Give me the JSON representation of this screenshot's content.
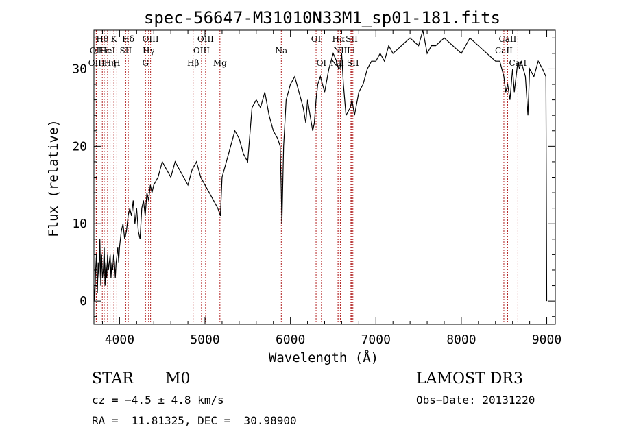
{
  "chart_data": {
    "type": "line",
    "title": "spec-56647-M31010N33M1_sp01-181.fits",
    "xlabel": "Wavelength (Å)",
    "ylabel": "Flux (relative)",
    "xlim": [
      3700,
      9100
    ],
    "ylim": [
      -3,
      35
    ],
    "x_ticks": [
      4000,
      5000,
      6000,
      7000,
      8000,
      9000
    ],
    "y_ticks": [
      0,
      10,
      20,
      30
    ],
    "grid": false,
    "series": [
      {
        "name": "flux",
        "x": [
          3700,
          3710,
          3720,
          3730,
          3740,
          3750,
          3760,
          3770,
          3780,
          3790,
          3800,
          3810,
          3820,
          3830,
          3840,
          3850,
          3860,
          3870,
          3880,
          3890,
          3900,
          3910,
          3920,
          3930,
          3940,
          3950,
          3960,
          3970,
          3980,
          3990,
          4000,
          4020,
          4040,
          4060,
          4080,
          4100,
          4120,
          4140,
          4160,
          4180,
          4200,
          4220,
          4240,
          4260,
          4280,
          4300,
          4320,
          4340,
          4360,
          4380,
          4400,
          4450,
          4500,
          4550,
          4600,
          4650,
          4700,
          4750,
          4800,
          4850,
          4900,
          4950,
          5000,
          5050,
          5100,
          5150,
          5180,
          5200,
          5250,
          5300,
          5350,
          5400,
          5450,
          5500,
          5550,
          5600,
          5650,
          5700,
          5750,
          5800,
          5850,
          5880,
          5893,
          5900,
          5920,
          5950,
          6000,
          6050,
          6100,
          6150,
          6180,
          6200,
          6230,
          6260,
          6280,
          6300,
          6320,
          6350,
          6400,
          6450,
          6500,
          6540,
          6563,
          6580,
          6600,
          6620,
          6650,
          6700,
          6720,
          6750,
          6800,
          6850,
          6900,
          6950,
          7000,
          7050,
          7100,
          7150,
          7200,
          7300,
          7400,
          7500,
          7550,
          7600,
          7650,
          7700,
          7800,
          7900,
          8000,
          8100,
          8200,
          8300,
          8400,
          8450,
          8498,
          8520,
          8542,
          8570,
          8600,
          8620,
          8662,
          8680,
          8700,
          8750,
          8780,
          8800,
          8850,
          8900,
          8950,
          8990,
          9000
        ],
        "y": [
          2,
          0,
          4,
          6,
          1,
          5,
          3,
          8,
          2,
          6,
          3,
          4,
          7,
          2,
          5,
          3,
          6,
          4,
          5,
          6,
          3,
          5,
          4,
          6,
          5,
          3,
          5,
          6,
          7,
          5,
          7,
          9,
          10,
          8,
          9,
          11,
          12,
          11,
          13,
          10,
          12,
          9,
          8,
          12,
          13,
          11,
          14,
          13,
          15,
          14,
          15,
          16,
          18,
          17,
          16,
          18,
          17,
          16,
          15,
          17,
          18,
          16,
          15,
          14,
          13,
          12,
          11,
          16,
          18,
          20,
          22,
          21,
          19,
          18,
          25,
          26,
          25,
          27,
          24,
          22,
          21,
          20,
          14,
          10,
          20,
          26,
          28,
          29,
          27,
          25,
          23,
          26,
          24,
          22,
          23,
          26,
          28,
          29,
          27,
          30,
          32,
          31,
          30,
          30,
          32,
          28,
          24,
          25,
          26,
          24,
          27,
          28,
          30,
          31,
          31,
          32,
          31,
          33,
          32,
          33,
          34,
          33,
          35,
          32,
          33,
          33,
          34,
          33,
          32,
          34,
          33,
          32,
          31,
          31,
          29,
          27,
          28,
          26,
          30,
          27,
          31,
          30,
          31,
          29,
          24,
          30,
          29,
          31,
          30,
          29,
          0
        ]
      }
    ],
    "line_markers": [
      {
        "label": "Hθ",
        "x": 3798,
        "row": 1
      },
      {
        "label": "OII",
        "x": 3727,
        "row": 2
      },
      {
        "label": "OIII",
        "x": 3730,
        "row": 3
      },
      {
        "label": "Hε",
        "x": 3820,
        "row": 2
      },
      {
        "label": "HeI",
        "x": 3860,
        "row": 2
      },
      {
        "label": "K",
        "x": 3934,
        "row": 1
      },
      {
        "label": "Hη",
        "x": 3889,
        "row": 3
      },
      {
        "label": "H",
        "x": 3968,
        "row": 3
      },
      {
        "label": "SII",
        "x": 4072,
        "row": 2
      },
      {
        "label": "Hδ",
        "x": 4102,
        "row": 1
      },
      {
        "label": "OIII",
        "x": 4363,
        "row": 1
      },
      {
        "label": "Hγ",
        "x": 4340,
        "row": 2
      },
      {
        "label": "G",
        "x": 4304,
        "row": 3
      },
      {
        "label": "Hβ",
        "x": 4861,
        "row": 3
      },
      {
        "label": "OIII",
        "x": 5007,
        "row": 1
      },
      {
        "label": "OIII",
        "x": 4959,
        "row": 2
      },
      {
        "label": "Mg",
        "x": 5175,
        "row": 3
      },
      {
        "label": "Na",
        "x": 5893,
        "row": 2
      },
      {
        "label": "OI",
        "x": 6300,
        "row": 1
      },
      {
        "label": "OI",
        "x": 6363,
        "row": 3
      },
      {
        "label": "Hα",
        "x": 6563,
        "row": 1
      },
      {
        "label": "SII",
        "x": 6717,
        "row": 1
      },
      {
        "label": "NII",
        "x": 6584,
        "row": 2
      },
      {
        "label": "Li",
        "x": 6708,
        "row": 2
      },
      {
        "label": "NII",
        "x": 6548,
        "row": 3
      },
      {
        "label": "SII",
        "x": 6731,
        "row": 3
      },
      {
        "label": "CaII",
        "x": 8542,
        "row": 1
      },
      {
        "label": "CaII",
        "x": 8498,
        "row": 2
      },
      {
        "label": "CaII",
        "x": 8662,
        "row": 3
      }
    ]
  },
  "info": {
    "object_class": "STAR",
    "subclass": "M0",
    "survey": "LAMOST DR3",
    "cz": "cz = −4.5 ± 4.8 km/s",
    "obs_date": "Obs−Date: 20131220",
    "coords": "RA =  11.81325, DEC =  30.98900"
  }
}
